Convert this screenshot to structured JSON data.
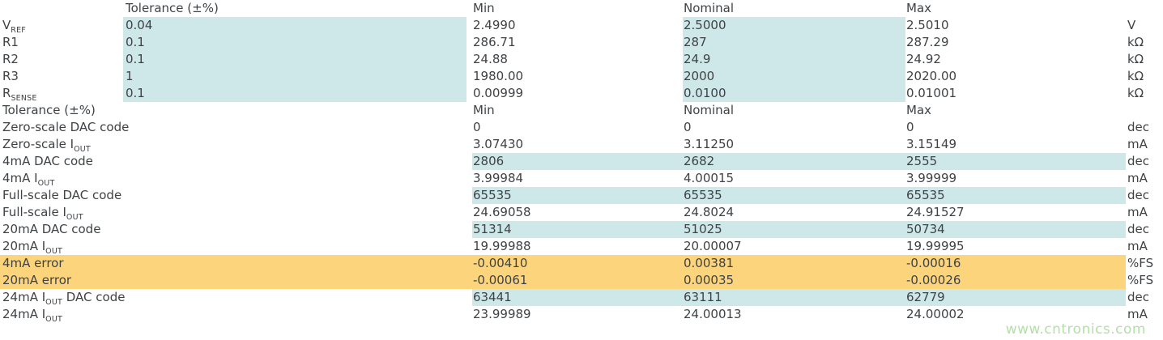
{
  "colors": {
    "highlight_teal": "#cee8ea",
    "highlight_orange": "#fcd47c",
    "text_color": "#3f4245",
    "watermark_green": "#b4e0a8"
  },
  "chart_data": [
    {
      "type": "table",
      "columns": [
        "",
        "Tolerance (±%)",
        "Min",
        "Nominal",
        "Max",
        ""
      ],
      "rows": [
        {
          "label": "V",
          "sub": "REF",
          "tolerance": "0.04",
          "min": "2.4990",
          "nominal": "2.5000",
          "max": "2.5010",
          "unit": "V"
        },
        {
          "label": "R1",
          "tolerance": "0.1",
          "min": "286.71",
          "nominal": "287",
          "max": "287.29",
          "unit": "kΩ"
        },
        {
          "label": "R2",
          "tolerance": "0.1",
          "min": "24.88",
          "nominal": "24.9",
          "max": "24.92",
          "unit": "kΩ"
        },
        {
          "label": "R3",
          "tolerance": "1",
          "min": "1980.00",
          "nominal": "2000",
          "max": "2020.00",
          "unit": "kΩ"
        },
        {
          "label": "R",
          "sub": "SENSE",
          "tolerance": "0.1",
          "min": "0.00999",
          "nominal": "0.0100",
          "max": "0.01001",
          "unit": "kΩ"
        }
      ]
    },
    {
      "type": "table",
      "columns": [
        "Tolerance (±%)",
        "Min",
        "Nominal",
        "Max",
        ""
      ],
      "rows": [
        {
          "label": "Zero-scale DAC code",
          "min": "0",
          "nominal": "0",
          "max": "0",
          "unit": "dec",
          "highlight": "none"
        },
        {
          "label": "Zero-scale I",
          "sub": "OUT",
          "min": "3.07430",
          "nominal": "3.11250",
          "max": "3.15149",
          "unit": "mA",
          "highlight": "none"
        },
        {
          "label": "4mA DAC code",
          "min": "2806",
          "nominal": "2682",
          "max": "2555",
          "unit": "dec",
          "highlight": "teal"
        },
        {
          "label": "4mA I",
          "sub": "OUT",
          "min": "3.99984",
          "nominal": "4.00015",
          "max": "3.99999",
          "unit": "mA",
          "highlight": "none"
        },
        {
          "label": "Full-scale DAC code",
          "min": "65535",
          "nominal": "65535",
          "max": "65535",
          "unit": "dec",
          "highlight": "teal"
        },
        {
          "label": "Full-scale I",
          "sub": "OUT",
          "min": "24.69058",
          "nominal": "24.8024",
          "max": "24.91527",
          "unit": "mA",
          "highlight": "none"
        },
        {
          "label": "20mA DAC code",
          "min": "51314",
          "nominal": "51025",
          "max": "50734",
          "unit": "dec",
          "highlight": "teal"
        },
        {
          "label": "20mA I",
          "sub": "OUT",
          "min": "19.99988",
          "nominal": "20.00007",
          "max": "19.99995",
          "unit": "mA",
          "highlight": "none"
        },
        {
          "label": "4mA error",
          "min": "-0.00410",
          "nominal": "0.00381",
          "max": "-0.00016",
          "unit": "%FS",
          "highlight": "orange"
        },
        {
          "label": "20mA error",
          "min": "-0.00061",
          "nominal": "0.00035",
          "max": "-0.00026",
          "unit": "%FS",
          "highlight": "orange"
        },
        {
          "label": "24mA I",
          "sub": "OUT",
          "tail": " DAC code",
          "min": "63441",
          "nominal": "63111",
          "max": "62779",
          "unit": "dec",
          "highlight": "teal"
        },
        {
          "label": "24mA I",
          "sub": "OUT",
          "min": "23.99989",
          "nominal": "24.00013",
          "max": "24.00002",
          "unit": "mA",
          "highlight": "none"
        }
      ]
    }
  ],
  "watermark": {
    "text": "www.cntronics.com"
  }
}
